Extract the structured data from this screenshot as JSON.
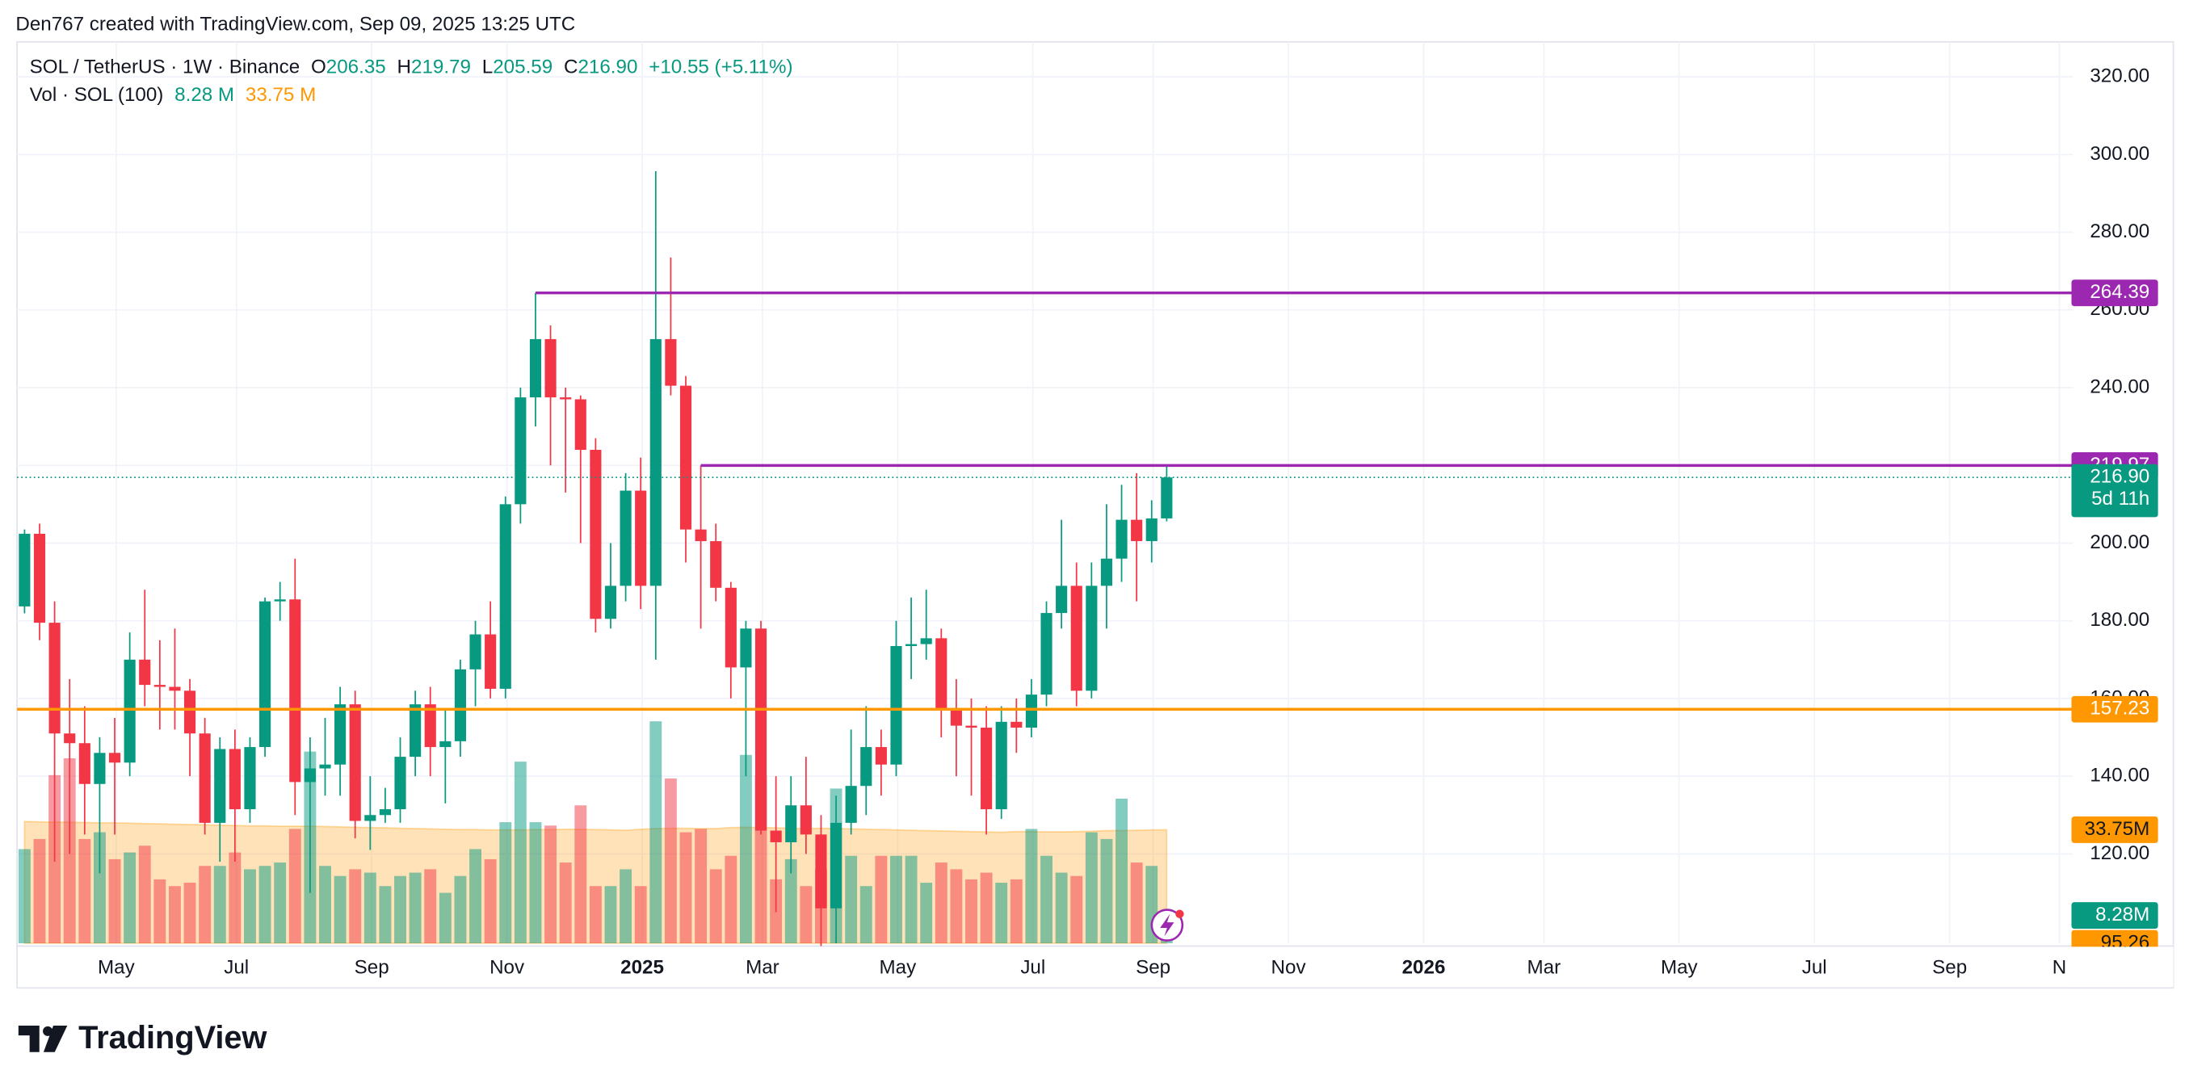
{
  "header": {
    "attribution": "Den767 created with TradingView.com, Sep 09, 2025 13:25 UTC",
    "symbol": "SOL / TetherUS · 1W · Binance",
    "ohlc_labels": [
      "O",
      "H",
      "L",
      "C"
    ],
    "change": "+10.55 (+5.11%)",
    "volume_title": "Vol · SOL (100)",
    "volume_value": "8.28 M",
    "volume_ma_value": "33.75 M",
    "brand": "TradingView"
  },
  "chart_data": {
    "type": "candlestick",
    "up_color": "#089981",
    "down_color": "#f23645",
    "open": [
      183.7,
      202.4,
      179.5,
      151,
      148.5,
      138,
      146,
      143.5,
      170,
      163.5,
      163,
      162,
      151,
      128,
      147,
      131.5,
      147.5,
      185,
      185.5,
      138.5,
      142,
      143,
      158.5,
      128.5,
      130,
      131.5,
      145,
      158.5,
      147.5,
      149,
      167.5,
      176.5,
      162.5,
      210,
      237.5,
      252.5,
      237.5,
      237,
      224,
      180.5,
      189,
      213.5,
      189,
      252.5,
      240.5,
      203.5,
      200.5,
      188.5,
      168,
      178,
      126,
      123,
      132.5,
      125,
      106,
      128,
      137.5,
      147.5,
      143,
      173.5,
      174,
      175.5,
      157.5,
      153,
      152.5,
      131.5,
      154,
      152.5,
      161,
      182,
      189,
      162,
      189,
      196,
      206,
      200.5,
      206.35
    ],
    "high": [
      203.5,
      205,
      185,
      165,
      158,
      150,
      155,
      177,
      188,
      175,
      178,
      165,
      155,
      150,
      152,
      150,
      186,
      190,
      196,
      150,
      155,
      163,
      162,
      140,
      137,
      150,
      162,
      163,
      157,
      170,
      180,
      185,
      212,
      240,
      264.39,
      256,
      240,
      238,
      227,
      200,
      218,
      222,
      295.7,
      273.5,
      243,
      219.97,
      205,
      190,
      180,
      180,
      140,
      140,
      145,
      130,
      135,
      152,
      158,
      152,
      180,
      186,
      188,
      178,
      165,
      160,
      158,
      158,
      160,
      165,
      185,
      206,
      195,
      195,
      210,
      215,
      218,
      211,
      219.79
    ],
    "low": [
      181.9,
      175,
      118,
      120,
      125,
      115,
      125,
      140,
      158,
      152,
      152,
      140,
      125,
      118,
      118,
      128,
      145,
      180,
      130,
      110,
      135,
      135,
      124,
      121,
      128,
      128,
      140,
      140,
      133,
      145,
      158,
      160,
      160,
      205,
      230,
      220,
      213,
      200,
      177,
      178,
      185,
      183,
      170,
      238,
      195,
      178,
      185,
      160,
      140,
      125,
      105,
      115,
      120,
      95.26,
      97,
      125,
      130,
      135,
      140,
      165,
      170,
      150,
      140,
      135,
      125,
      129,
      146,
      150,
      158,
      178,
      158,
      160,
      178,
      190,
      185,
      195,
      205.59
    ],
    "close": [
      202.4,
      179.5,
      151,
      148.5,
      138,
      146,
      143.5,
      170,
      163.5,
      163,
      162,
      151,
      128,
      147,
      131.5,
      147.5,
      185,
      185.5,
      138.5,
      142,
      143,
      158.5,
      128.5,
      130,
      131.5,
      145,
      158.5,
      147.5,
      149,
      167.5,
      176.5,
      162.5,
      210,
      237.5,
      252.5,
      237.5,
      237,
      224,
      180.5,
      189,
      213.5,
      189,
      252.5,
      240.5,
      203.5,
      200.5,
      188.5,
      168,
      178,
      126,
      123,
      132.5,
      125,
      106,
      128,
      137.5,
      147.5,
      143,
      173.5,
      174,
      175.5,
      157.5,
      153,
      152.5,
      131.5,
      154,
      152.5,
      161,
      182,
      189,
      162,
      189,
      196,
      206,
      200.5,
      206.35,
      216.9
    ],
    "volume": [
      28,
      31,
      50,
      55,
      31,
      33,
      25,
      27,
      29,
      19,
      17,
      18,
      23,
      23,
      27,
      22,
      23,
      24,
      34,
      57,
      23,
      20,
      22,
      21,
      17,
      20,
      21,
      22,
      15,
      20,
      28,
      25,
      36,
      54,
      36,
      35,
      24,
      41,
      17,
      17,
      22,
      17,
      66,
      49,
      33,
      34,
      22,
      26,
      56,
      50,
      19,
      25,
      17,
      22,
      46,
      26,
      17,
      26,
      26,
      26,
      18,
      24,
      22,
      19,
      21,
      18,
      19,
      34,
      26,
      21,
      20,
      33,
      31,
      43,
      24,
      23,
      8.28
    ],
    "volume_ma": [
      36.2,
      36.1,
      36.0,
      36.0,
      35.9,
      35.8,
      35.8,
      35.7,
      35.6,
      35.5,
      35.4,
      35.3,
      35.2,
      35.1,
      35.0,
      34.9,
      34.9,
      34.8,
      34.8,
      34.8,
      34.7,
      34.6,
      34.5,
      34.4,
      34.3,
      34.2,
      34.1,
      34.0,
      33.9,
      33.8,
      33.8,
      33.7,
      33.7,
      33.7,
      33.8,
      33.8,
      33.9,
      33.9,
      33.8,
      33.7,
      33.6,
      33.9,
      34.1,
      34.2,
      34.2,
      34.1,
      34.1,
      34.4,
      34.5,
      34.4,
      34.3,
      34.2,
      34.1,
      34.2,
      34.1,
      34.0,
      33.9,
      33.8,
      33.7,
      33.6,
      33.5,
      33.4,
      33.3,
      33.2,
      33.1,
      33.0,
      33.2,
      33.2,
      33.1,
      33.1,
      33.2,
      33.3,
      33.5,
      33.5,
      33.6,
      33.7,
      33.75
    ],
    "volume_ylim": [
      0,
      268
    ],
    "ylim": [
      97,
      329
    ],
    "yticks": [
      {
        "value": 120,
        "label": "120.00"
      },
      {
        "value": 140,
        "label": "140.00"
      },
      {
        "value": 160,
        "label": "160.00"
      },
      {
        "value": 180,
        "label": "180.00"
      },
      {
        "value": 200,
        "label": "200.00"
      },
      {
        "value": 220,
        "label": "220.00"
      },
      {
        "value": 240,
        "label": "240.00"
      },
      {
        "value": 260,
        "label": "260.00"
      },
      {
        "value": 280,
        "label": "280.00"
      },
      {
        "value": 300,
        "label": "300.00"
      },
      {
        "value": 320,
        "label": "320.00"
      }
    ],
    "xlim": [
      -0.5,
      136.3
    ],
    "xticks": [
      {
        "value": 6.1,
        "label": "May"
      },
      {
        "value": 14.1,
        "label": "Jul"
      },
      {
        "value": 23.1,
        "label": "Sep"
      },
      {
        "value": 32.1,
        "label": "Nov"
      },
      {
        "value": 41.1,
        "label": "2025"
      },
      {
        "value": 49.1,
        "label": "Mar"
      },
      {
        "value": 58.1,
        "label": "May"
      },
      {
        "value": 67.1,
        "label": "Jul"
      },
      {
        "value": 75.1,
        "label": "Sep"
      },
      {
        "value": 84.1,
        "label": "Nov"
      },
      {
        "value": 93.1,
        "label": "2026"
      },
      {
        "value": 101.1,
        "label": "Mar"
      },
      {
        "value": 110.1,
        "label": "May"
      },
      {
        "value": 119.1,
        "label": "Jul"
      },
      {
        "value": 128.1,
        "label": "Sep"
      },
      {
        "value": 135.4,
        "label": "N"
      }
    ],
    "grid": true,
    "hlines": [
      {
        "value": 264.39,
        "label": "264.39",
        "color": "#9c27b0",
        "start": 34
      },
      {
        "value": 219.97,
        "label": "219.97",
        "color": "#9c27b0",
        "start": 45
      },
      {
        "value": 157.23,
        "label": "157.23",
        "color": "#ff9800",
        "start": -0.5
      }
    ],
    "last_price": {
      "value": 216.9,
      "label": "216.90",
      "countdown": "5d 11h",
      "color": "#089981"
    },
    "low_label": {
      "value": 95.26,
      "label": "95.26",
      "color": "#ff9800"
    },
    "volume_labels": [
      {
        "value": 33.75,
        "label": "33.75M",
        "color": "#ff9800"
      },
      {
        "value": 8.28,
        "label": "8.28M",
        "color": "#089981"
      }
    ]
  }
}
